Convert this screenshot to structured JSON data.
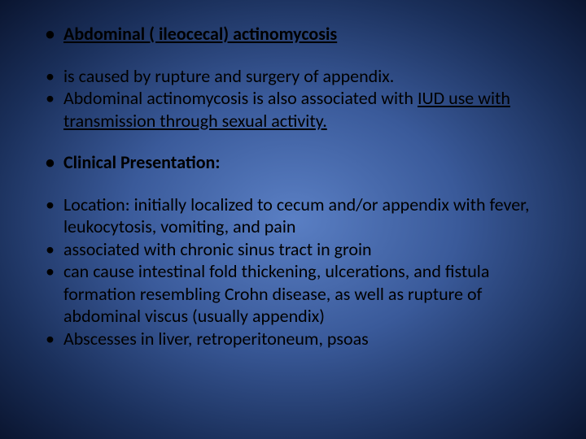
{
  "slide": {
    "background_gradient": [
      "#5a7fc4",
      "#3a5a9a",
      "#1a2f5a",
      "#0a1530"
    ],
    "text_color": "#000000",
    "font_family": "Calibri",
    "title_fontsize": 22,
    "body_fontsize": 22,
    "heading": "Abdominal ( ileocecal) actinomycosis",
    "intro": {
      "line1": "is caused by rupture and surgery of appendix.",
      "line2_prefix": "Abdominal actinomycosis is also associated with ",
      "line2_underlined": "IUD use with transmission through sexual activity."
    },
    "subheading": "Clinical Presentation:",
    "presentation": {
      "item1": "Location: initially localized to cecum and/or appendix with fever, leukocytosis, vomiting, and pain",
      "item2": "associated with chronic sinus tract in groin",
      "item3": "can cause intestinal fold thickening, ulcerations, and fistula formation  resembling Crohn disease, as well as rupture of abdominal viscus (usually appendix)",
      "item4": "Abscesses in liver, retroperitoneum, psoas"
    }
  }
}
